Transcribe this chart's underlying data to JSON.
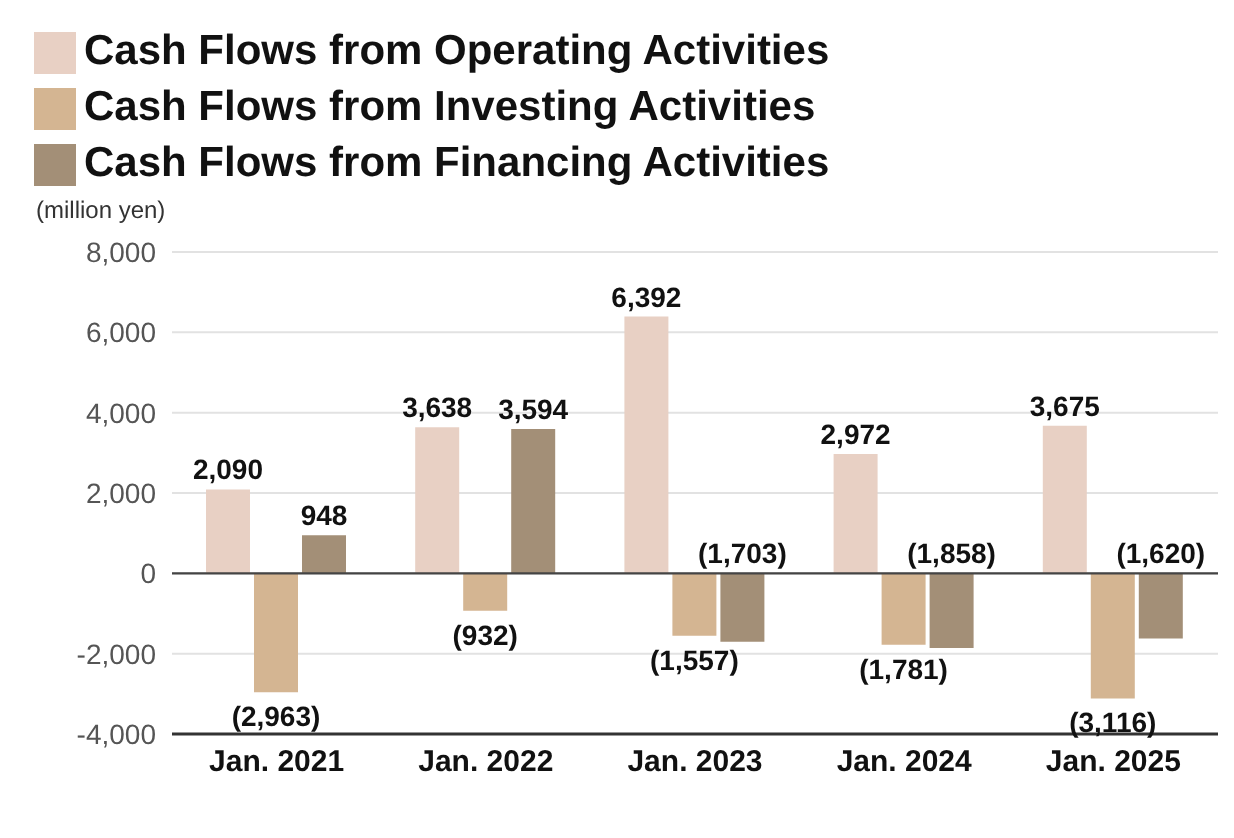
{
  "chart_data": {
    "type": "bar",
    "ylabel": "(million yen)",
    "categories": [
      "Jan. 2021",
      "Jan. 2022",
      "Jan. 2023",
      "Jan. 2024",
      "Jan. 2025"
    ],
    "series": [
      {
        "name": "Cash Flows from Operating Activities",
        "color": "#e8d0c4",
        "values": [
          2090,
          3638,
          6392,
          2972,
          3675
        ],
        "value_labels": [
          "2,090",
          "3,638",
          "6,392",
          "2,972",
          "3,675"
        ]
      },
      {
        "name": "Cash Flows from Investing Activities",
        "color": "#d4b592",
        "values": [
          -2963,
          -932,
          -1557,
          -1781,
          -3116
        ],
        "value_labels": [
          "(2,963)",
          "(932)",
          "(1,557)",
          "(1,781)",
          "(3,116)"
        ]
      },
      {
        "name": "Cash Flows from Financing Activities",
        "color": "#a38f77",
        "values": [
          948,
          3594,
          -1703,
          -1858,
          -1620
        ],
        "value_labels": [
          "948",
          "3,594",
          "(1,703)",
          "(1,858)",
          "(1,620)"
        ]
      }
    ],
    "ylim": [
      -4000,
      8000
    ],
    "yticks": [
      {
        "value": -4000,
        "label": "-4,000"
      },
      {
        "value": -2000,
        "label": "-2,000"
      },
      {
        "value": 0,
        "label": "0"
      },
      {
        "value": 2000,
        "label": "2,000"
      },
      {
        "value": 4000,
        "label": "4,000"
      },
      {
        "value": 6000,
        "label": "6,000"
      },
      {
        "value": 8000,
        "label": "8,000"
      }
    ],
    "grid": "y",
    "legend": "top left"
  }
}
